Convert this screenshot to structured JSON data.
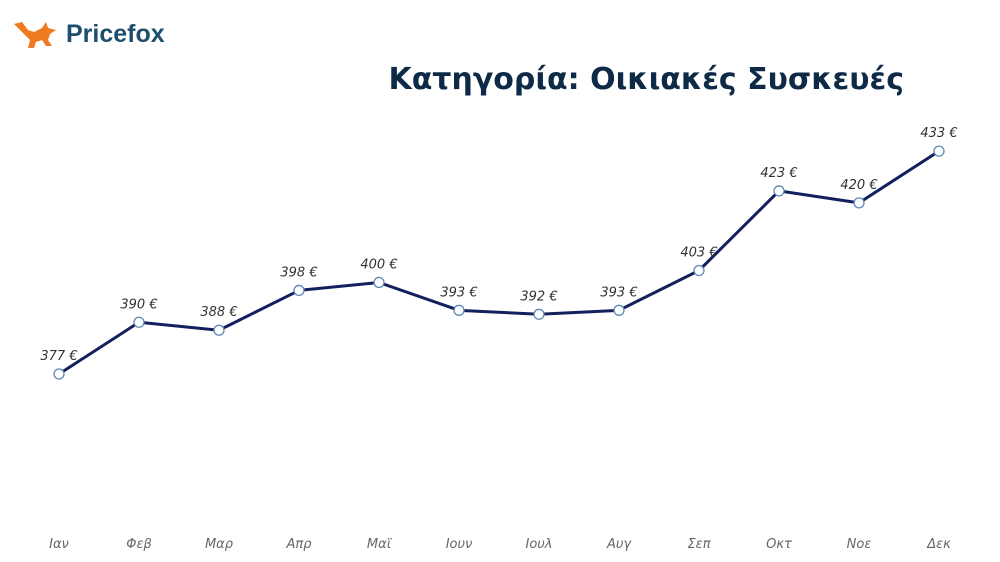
{
  "brand": {
    "name": "Pricefox",
    "logo_icon": "fox-icon",
    "color": "#1d4e6e",
    "icon_color": "#f07a22"
  },
  "chart_data": {
    "type": "line",
    "title": "Κατηγορία: Οικιακές Συσκευές",
    "categories": [
      "Ιαν",
      "Φεβ",
      "Μαρ",
      "Απρ",
      "Μαϊ",
      "Ιουν",
      "Ιουλ",
      "Αυγ",
      "Σεπ",
      "Οκτ",
      "Νοε",
      "Δεκ"
    ],
    "values": [
      377,
      390,
      388,
      398,
      400,
      393,
      392,
      393,
      403,
      423,
      420,
      433
    ],
    "data_labels": [
      "377 €",
      "390 €",
      "388 €",
      "398 €",
      "400 €",
      "393 €",
      "392 €",
      "393 €",
      "403 €",
      "423 €",
      "420 €",
      "433 €"
    ],
    "unit": "€",
    "line_color": "#14205e",
    "grid": false,
    "y_axis_visible": false
  }
}
